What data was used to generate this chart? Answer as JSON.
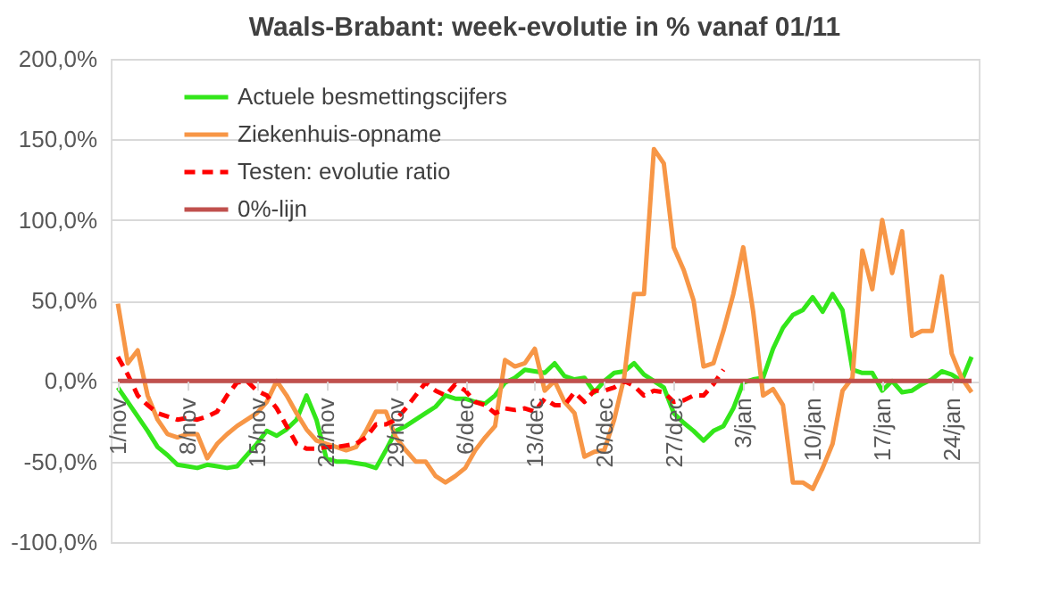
{
  "chart_data": {
    "type": "line",
    "title": "Waals-Brabant: week-evolutie in % vanaf 01/11",
    "categories": [
      "1/nov",
      null,
      null,
      null,
      null,
      null,
      null,
      "8/nov",
      null,
      null,
      null,
      null,
      null,
      null,
      "15/nov",
      null,
      null,
      null,
      null,
      null,
      null,
      "22/nov",
      null,
      null,
      null,
      null,
      null,
      null,
      "29/nov",
      null,
      null,
      null,
      null,
      null,
      null,
      "6/dec",
      null,
      null,
      null,
      null,
      null,
      null,
      "13/dec",
      null,
      null,
      null,
      null,
      null,
      null,
      "20/dec",
      null,
      null,
      null,
      null,
      null,
      null,
      "27/dec",
      null,
      null,
      null,
      null,
      null,
      null,
      "3/jan",
      null,
      null,
      null,
      null,
      null,
      null,
      "10/jan",
      null,
      null,
      null,
      null,
      null,
      null,
      "17/jan",
      null,
      null,
      null,
      null,
      null,
      null,
      "24/jan",
      null,
      null
    ],
    "series": [
      {
        "name": "Actuele besmettingscijfers",
        "color": "#33e61a",
        "values": [
          -4,
          -13,
          -22,
          -31,
          -41,
          -46,
          -52,
          -53,
          -54,
          -52,
          -53,
          -54,
          -53,
          -46,
          -39,
          -31,
          -34,
          -30,
          -24,
          -9,
          -24,
          -48,
          -50,
          -50,
          -51,
          -52,
          -54,
          -43,
          -31,
          -28,
          -24,
          -20,
          -16,
          -9,
          -11,
          -11,
          -13,
          -14,
          -9,
          -1,
          2,
          7,
          6,
          5,
          11,
          3,
          1,
          2,
          -7,
          0,
          5,
          6,
          11,
          4,
          0,
          -4,
          -20,
          -26,
          -31,
          -37,
          -31,
          -28,
          -17,
          -1,
          1,
          2,
          20,
          33,
          41,
          44,
          52,
          43,
          54,
          44,
          7,
          5,
          5,
          -6,
          0,
          -7,
          -6,
          -2,
          1,
          6,
          4,
          0,
          15
        ]
      },
      {
        "name": "Ziekenhuis-opname",
        "color": "#f79646",
        "values": [
          48,
          11,
          19,
          -9,
          -24,
          -33,
          -35,
          -33,
          -33,
          -48,
          -39,
          -33,
          -28,
          -24,
          -20,
          -13,
          0,
          -9,
          -20,
          -30,
          -37,
          -39,
          -41,
          -43,
          -41,
          -31,
          -19,
          -19,
          -35,
          -43,
          -50,
          -50,
          -59,
          -63,
          -59,
          -54,
          -43,
          -35,
          -28,
          13,
          9,
          11,
          20,
          -6,
          0,
          -13,
          -20,
          -47,
          -44,
          -43,
          -24,
          2,
          54,
          54,
          144,
          135,
          83,
          69,
          50,
          9,
          11,
          31,
          54,
          83,
          43,
          -9,
          -5,
          -15,
          -63,
          -63,
          -67,
          -54,
          -39,
          -6,
          2,
          81,
          57,
          100,
          67,
          93,
          28,
          31,
          31,
          65,
          17,
          2,
          -7
        ]
      },
      {
        "name": "Testen: evolutie ratio",
        "color": "#ff0000",
        "line_style": "dashed",
        "values": [
          15,
          4,
          -9,
          -15,
          -20,
          -22,
          -24,
          -23,
          -24,
          -22,
          -19,
          -9,
          -1,
          0,
          -6,
          -9,
          -17,
          -28,
          -39,
          -42,
          -42,
          -41,
          -41,
          -40,
          -39,
          -35,
          -27,
          -27,
          -24,
          -17,
          -9,
          -1,
          -6,
          -9,
          -2,
          -6,
          -13,
          -15,
          -20,
          -17,
          -18,
          -17,
          -19,
          -11,
          -15,
          -15,
          -7,
          -13,
          -6,
          -6,
          -4,
          0,
          -3,
          -9,
          -6,
          -7,
          -13,
          -12,
          -9,
          -9,
          -2,
          7,
          null,
          null,
          null,
          null,
          null,
          null,
          null,
          null,
          null,
          null,
          null,
          null,
          null,
          null,
          null,
          null,
          null,
          null,
          null,
          null,
          null,
          null,
          null,
          null,
          null
        ]
      },
      {
        "name": "0%-lijn",
        "color": "#c0504d",
        "values": [
          0,
          0,
          0,
          0,
          0,
          0,
          0,
          0,
          0,
          0,
          0,
          0,
          0,
          0,
          0,
          0,
          0,
          0,
          0,
          0,
          0,
          0,
          0,
          0,
          0,
          0,
          0,
          0,
          0,
          0,
          0,
          0,
          0,
          0,
          0,
          0,
          0,
          0,
          0,
          0,
          0,
          0,
          0,
          0,
          0,
          0,
          0,
          0,
          0,
          0,
          0,
          0,
          0,
          0,
          0,
          0,
          0,
          0,
          0,
          0,
          0,
          0,
          0,
          0,
          0,
          0,
          0,
          0,
          0,
          0,
          0,
          0,
          0,
          0,
          0,
          0,
          0,
          0,
          0,
          0,
          0,
          0,
          0,
          0,
          0,
          0,
          0
        ]
      }
    ],
    "ylim": [
      -100,
      200
    ],
    "yticks": [
      {
        "value": -100,
        "label": "-100,0%"
      },
      {
        "value": -50,
        "label": "-50,0%"
      },
      {
        "value": 0,
        "label": "0,0%"
      },
      {
        "value": 50,
        "label": "50,0%"
      },
      {
        "value": 100,
        "label": "100,0%"
      },
      {
        "value": 150,
        "label": "150,0%"
      },
      {
        "value": 200,
        "label": "200,0%"
      }
    ],
    "grid": "y",
    "legend": "top left",
    "line_style": "solid"
  }
}
